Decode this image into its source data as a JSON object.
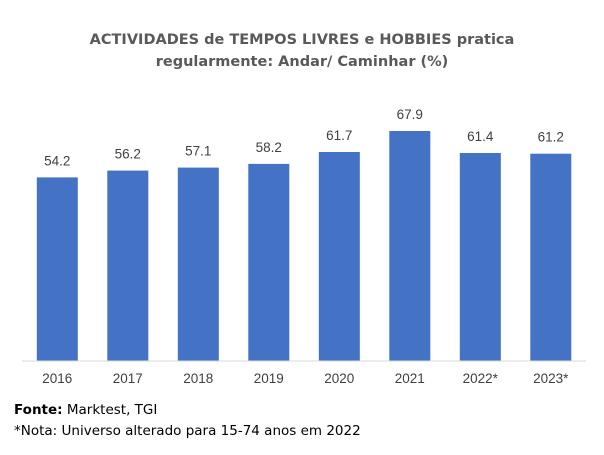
{
  "chart_data": {
    "type": "bar",
    "title_lines": [
      "ACTIVIDADES de TEMPOS LIVRES e HOBBIES pratica",
      "regularmente: Andar/ Caminhar (%)"
    ],
    "categories": [
      "2016",
      "2017",
      "2018",
      "2019",
      "2020",
      "2021",
      "2022*",
      "2023*"
    ],
    "values": [
      54.2,
      56.2,
      57.1,
      58.2,
      61.7,
      67.9,
      61.4,
      61.2
    ],
    "value_labels": [
      "54.2",
      "56.2",
      "57.1",
      "58.2",
      "61.7",
      "67.9",
      "61.4",
      "61.2"
    ],
    "bar_color": "#4472C4",
    "ylim": [
      0,
      67.9
    ],
    "grid": false,
    "legend": false
  },
  "footer": {
    "source_label": "Fonte:",
    "source_value": " Marktest, TGI",
    "note": "*Nota: Universo alterado para 15-74 anos em 2022"
  }
}
